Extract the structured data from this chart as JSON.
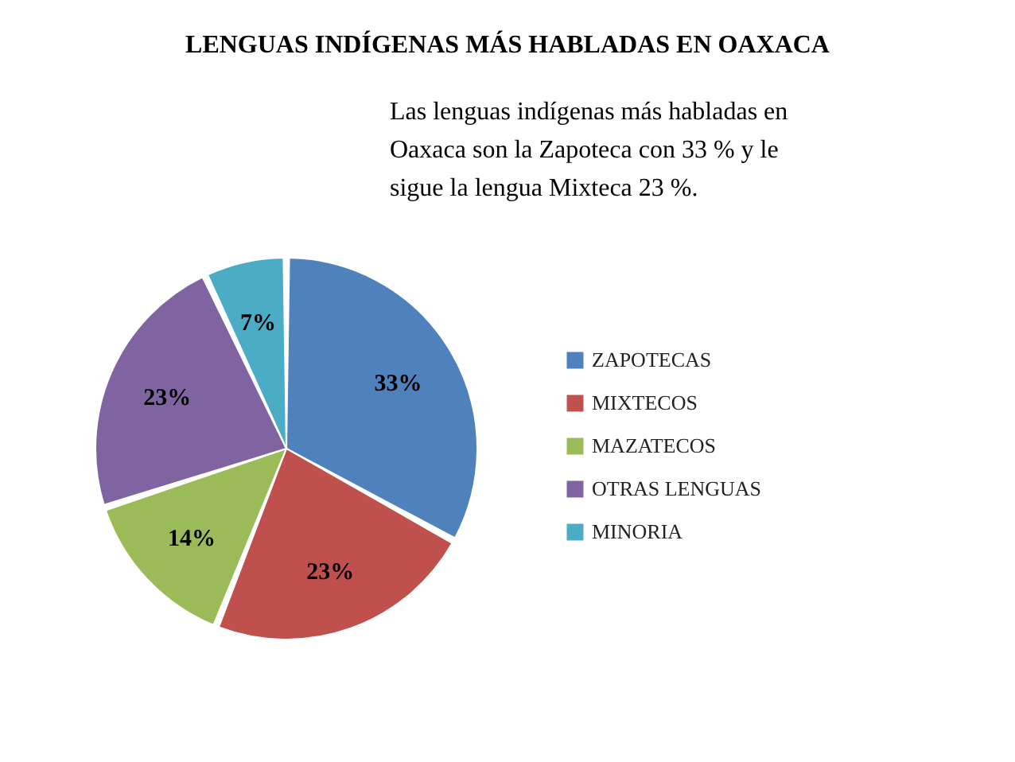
{
  "chart_data": {
    "type": "pie",
    "title": "LENGUAS INDÍGENAS MÁS HABLADAS EN OAXACA",
    "annotations": [
      "Las lenguas indígenas más habladas en Oaxaca son la Zapoteca con 33 % y le sigue la lengua Mixteca 23 %."
    ],
    "categories": [
      "ZAPOTECAS",
      "MIXTECOS",
      "MAZATECOS",
      "OTRAS LENGUAS",
      "MINORIA"
    ],
    "values": [
      33,
      23,
      14,
      23,
      7
    ],
    "colors": [
      "#4f81bd",
      "#c0504d",
      "#9bbb59",
      "#8064a2",
      "#4bacc6"
    ],
    "value_labels": [
      "33%",
      "23%",
      "14%",
      "23%",
      "7%"
    ],
    "legend": "right"
  }
}
